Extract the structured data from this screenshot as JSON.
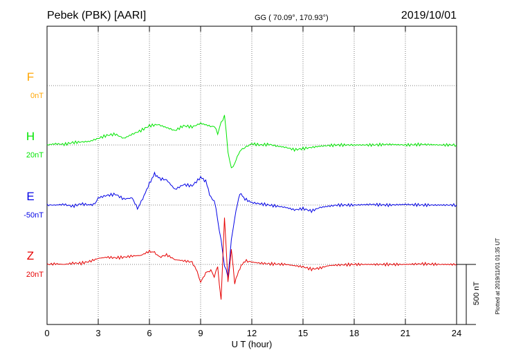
{
  "header": {
    "station": "Pebek (PBK)  [AARI]",
    "coords": "GG ( 70.09°, 170.93°)",
    "date": "2019/10/01"
  },
  "plotted_note": "Plotted at 2019/11/01 01:35 UT",
  "scale_label": "500 nT",
  "chart_data": {
    "type": "line",
    "xlabel": "U T (hour)",
    "xlim": [
      0,
      24
    ],
    "x_ticks": [
      "0",
      "3",
      "6",
      "9",
      "12",
      "15",
      "18",
      "21",
      "24"
    ],
    "grid": true,
    "scale_bar_nT": 500,
    "series": [
      {
        "name": "F",
        "offset_label": "0nT",
        "color": "#ffa500",
        "values": []
      },
      {
        "name": "H",
        "offset_label": "20nT",
        "color": "#00e600",
        "x": [
          0,
          0.5,
          1,
          1.5,
          2,
          2.5,
          3,
          3.5,
          4,
          4.5,
          5,
          5.5,
          6,
          6.5,
          7,
          7.5,
          8,
          8.5,
          9,
          9.5,
          9.8,
          10,
          10.2,
          10.4,
          10.6,
          10.8,
          11,
          11.3,
          11.6,
          12,
          12.5,
          13,
          13.5,
          14,
          14.5,
          15,
          15.5,
          16,
          16.5,
          17,
          18,
          19,
          20,
          21,
          22,
          23,
          24
        ],
        "values": [
          0,
          10,
          5,
          20,
          25,
          30,
          55,
          80,
          90,
          55,
          90,
          120,
          160,
          170,
          145,
          120,
          160,
          150,
          180,
          160,
          150,
          100,
          180,
          250,
          -50,
          -200,
          -150,
          -50,
          -20,
          10,
          0,
          5,
          -10,
          -20,
          -40,
          -30,
          -20,
          -10,
          -5,
          0,
          0,
          0,
          5,
          0,
          5,
          0,
          0
        ]
      },
      {
        "name": "E",
        "offset_label": "-50nT",
        "color": "#0000e6",
        "x": [
          0,
          0.5,
          1,
          1.5,
          2,
          2.5,
          2.8,
          3,
          3.5,
          4,
          4.5,
          5,
          5.3,
          5.6,
          6,
          6.3,
          6.6,
          7,
          7.5,
          8,
          8.5,
          9,
          9.3,
          9.6,
          9.8,
          10,
          10.2,
          10.4,
          10.6,
          10.8,
          11,
          11.3,
          11.6,
          12,
          12.5,
          13,
          14,
          14.5,
          15,
          15.5,
          16,
          16.5,
          17,
          18,
          19,
          20,
          21,
          22,
          23,
          24
        ],
        "values": [
          0,
          0,
          5,
          -10,
          10,
          0,
          10,
          60,
          80,
          90,
          50,
          60,
          -30,
          50,
          180,
          260,
          220,
          210,
          130,
          170,
          160,
          230,
          200,
          60,
          40,
          -120,
          -300,
          -500,
          -600,
          -300,
          -100,
          100,
          50,
          20,
          10,
          0,
          -20,
          -40,
          -30,
          -50,
          -20,
          -10,
          0,
          0,
          5,
          0,
          5,
          0,
          0,
          0
        ]
      },
      {
        "name": "Z",
        "offset_label": "20nT",
        "color": "#e60000",
        "x": [
          0,
          0.5,
          1,
          1.5,
          2,
          2.5,
          3,
          3.5,
          4,
          4.5,
          5,
          5.5,
          6,
          6.3,
          6.6,
          7,
          7.5,
          8,
          8.5,
          8.8,
          9,
          9.3,
          9.6,
          9.8,
          10,
          10.2,
          10.4,
          10.6,
          10.8,
          11,
          11.3,
          11.6,
          12,
          12.5,
          13,
          14,
          15,
          15.5,
          16,
          16.5,
          17,
          18,
          19,
          20,
          21,
          22,
          23,
          24
        ],
        "values": [
          0,
          5,
          0,
          10,
          10,
          25,
          50,
          60,
          55,
          60,
          70,
          75,
          110,
          100,
          60,
          80,
          40,
          30,
          20,
          -60,
          -150,
          -70,
          -50,
          -100,
          -20,
          -300,
          400,
          -150,
          120,
          -150,
          -30,
          30,
          20,
          10,
          5,
          0,
          -20,
          -40,
          -30,
          -10,
          -5,
          0,
          0,
          0,
          0,
          5,
          0,
          0
        ]
      }
    ]
  }
}
